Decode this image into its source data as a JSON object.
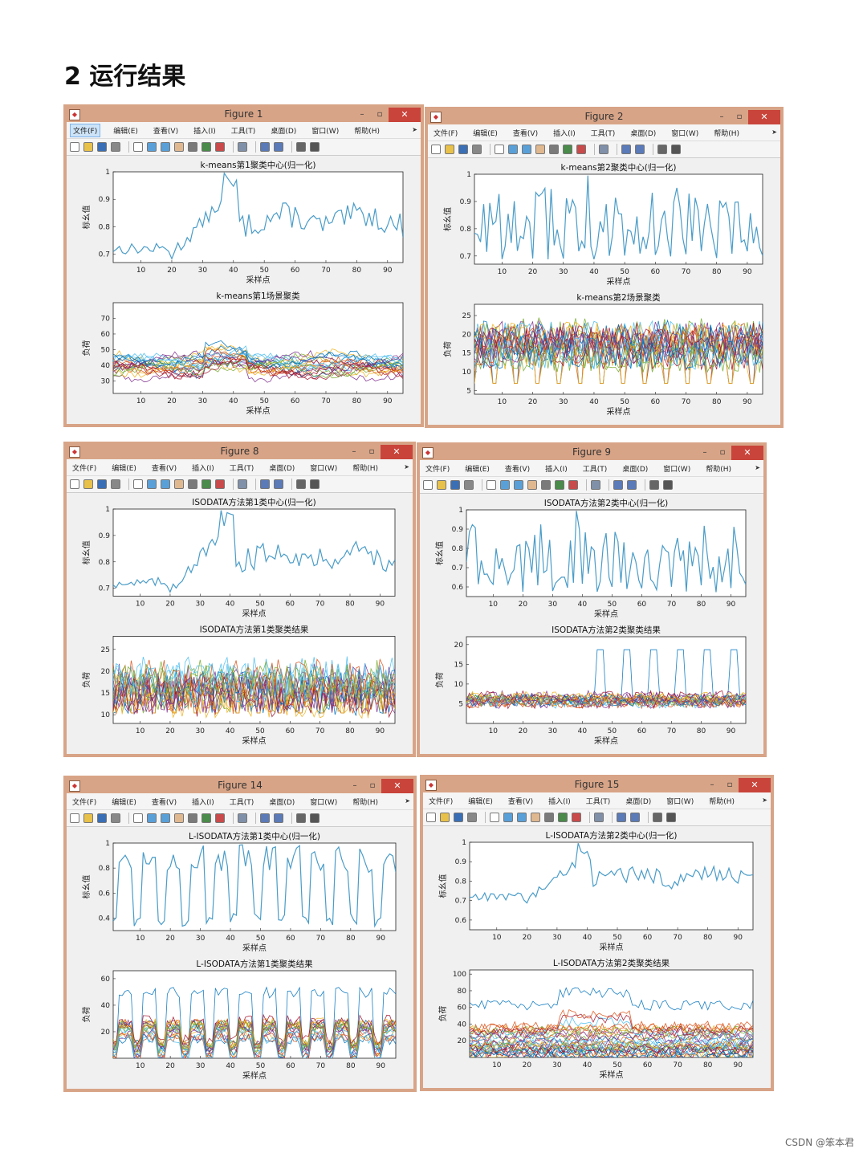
{
  "heading": "2  运行结果",
  "watermark": "CSDN @笨本君",
  "menu": [
    "文件(F)",
    "编辑(E)",
    "查看(V)",
    "插入(I)",
    "工具(T)",
    "桌面(D)",
    "窗口(W)",
    "帮助(H)"
  ],
  "colors": {
    "frame": "#d8a487",
    "close": "#c9443a",
    "center_line": "#4a9cc8"
  },
  "icons": [
    "new-file-icon",
    "open-folder-icon",
    "save-icon",
    "print-icon",
    "separator",
    "pointer-icon",
    "zoom-in-icon",
    "zoom-out-icon",
    "pan-icon",
    "rotate-icon",
    "data-cursor-icon",
    "brush-icon",
    "separator",
    "link-icon",
    "separator",
    "colorbar-icon",
    "legend-icon",
    "separator",
    "hide-tools-icon",
    "show-tools-icon"
  ],
  "x_ticks": [
    "10",
    "20",
    "30",
    "40",
    "50",
    "60",
    "70",
    "80",
    "90"
  ],
  "figures": [
    {
      "title": "Figure 1",
      "active_menu": 0,
      "top": {
        "title": "k-means第1聚类中心(归一化)",
        "ylabel": "标幺值",
        "xlabel": "采样点",
        "ticks": [
          "0.7",
          "0.8",
          "0.9",
          "1"
        ],
        "ymin": 0.67,
        "ymax": 1.0,
        "pattern": "center1"
      },
      "bottom": {
        "title": "k-means第1场景聚类",
        "ylabel": "负荷",
        "xlabel": "采样点",
        "ticks": [
          "30",
          "40",
          "50",
          "60",
          "70"
        ],
        "ymin": 22,
        "ymax": 80,
        "pattern": "smooth",
        "base": 40,
        "amp": 6,
        "n": 22
      }
    },
    {
      "title": "Figure 2",
      "active_menu": -1,
      "top": {
        "title": "k-means第2聚类中心(归一化)",
        "ylabel": "标幺值",
        "xlabel": "采样点",
        "ticks": [
          "0.7",
          "0.8",
          "0.9",
          "1"
        ],
        "ymin": 0.67,
        "ymax": 1.0,
        "pattern": "center2"
      },
      "bottom": {
        "title": "k-means第2场景聚类",
        "ylabel": "负荷",
        "xlabel": "采样点",
        "ticks": [
          "5",
          "10",
          "15",
          "20",
          "25"
        ],
        "ymin": 4,
        "ymax": 28,
        "pattern": "noisy",
        "base": 17,
        "amp": 3,
        "n": 22
      }
    },
    {
      "title": "Figure 8",
      "active_menu": -1,
      "top": {
        "title": "ISODATA方法第1类中心(归一化)",
        "ylabel": "标幺值",
        "xlabel": "采样点",
        "ticks": [
          "0.7",
          "0.8",
          "0.9",
          "1"
        ],
        "ymin": 0.67,
        "ymax": 1.0,
        "pattern": "center1"
      },
      "bottom": {
        "title": "ISODATA方法第1类聚类结果",
        "ylabel": "负荷",
        "xlabel": "采样点",
        "ticks": [
          "10",
          "15",
          "20",
          "25"
        ],
        "ymin": 8,
        "ymax": 28,
        "pattern": "noisy",
        "base": 16,
        "amp": 3,
        "n": 20
      }
    },
    {
      "title": "Figure 9",
      "active_menu": -1,
      "top": {
        "title": "ISODATA方法第2类中心(归一化)",
        "ylabel": "标幺值",
        "xlabel": "采样点",
        "ticks": [
          "0.6",
          "0.7",
          "0.8",
          "0.9",
          "1"
        ],
        "ymin": 0.55,
        "ymax": 1.0,
        "pattern": "center2"
      },
      "bottom": {
        "title": "ISODATA方法第2类聚类结果",
        "ylabel": "负荷",
        "xlabel": "采样点",
        "ticks": [
          "5",
          "10",
          "15",
          "20"
        ],
        "ymin": 0,
        "ymax": 22,
        "pattern": "low",
        "base": 6,
        "amp": 1.5,
        "n": 18
      }
    },
    {
      "title": "Figure 14",
      "active_menu": -1,
      "top": {
        "title": "L-ISODATA方法第1类中心(归一化)",
        "ylabel": "标幺值",
        "xlabel": "采样点",
        "ticks": [
          "0.4",
          "0.6",
          "0.8",
          "1"
        ],
        "ymin": 0.3,
        "ymax": 1.0,
        "pattern": "periodic"
      },
      "bottom": {
        "title": "L-ISODATA方法第1类聚类结果",
        "ylabel": "负荷",
        "xlabel": "采样点",
        "ticks": [
          "20",
          "40",
          "60"
        ],
        "ymin": 0,
        "ymax": 66,
        "pattern": "periodicbundle",
        "base": 15,
        "amp": 8,
        "n": 20
      }
    },
    {
      "title": "Figure 15",
      "active_menu": -1,
      "top": {
        "title": "L-ISODATA方法第2类中心(归一化)",
        "ylabel": "标幺值",
        "xlabel": "采样点",
        "ticks": [
          "0.6",
          "0.7",
          "0.8",
          "0.9",
          "1"
        ],
        "ymin": 0.55,
        "ymax": 1.0,
        "pattern": "center1"
      },
      "bottom": {
        "title": "L-ISODATA方法第2类聚类结果",
        "ylabel": "负荷",
        "xlabel": "采样点",
        "ticks": [
          "20",
          "40",
          "60",
          "80",
          "100"
        ],
        "ymin": 0,
        "ymax": 105,
        "pattern": "spread",
        "base": 20,
        "amp": 6,
        "n": 30
      }
    }
  ]
}
